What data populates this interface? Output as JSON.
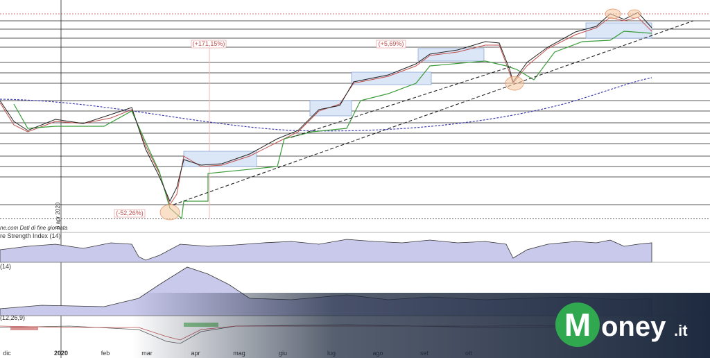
{
  "annotations": {
    "gain_1": "(+171,15%)",
    "gain_2": "(+5,69%)",
    "loss": "(-52,26%)",
    "source": "ne.com Dati di fine giornata",
    "date_marker": "6 apr 2020"
  },
  "panels": {
    "rsi": "re Strength Index (14)",
    "adx": "(14)",
    "macd": "(12,26,9)"
  },
  "x_axis_labels": [
    "dic",
    "2020",
    "feb",
    "mar",
    "apr",
    "mag",
    "giu",
    "lug",
    "ago",
    "set",
    "ott"
  ],
  "watermark": {
    "brand": "oney",
    "initial": "M",
    "suffix": ".it"
  }
}
